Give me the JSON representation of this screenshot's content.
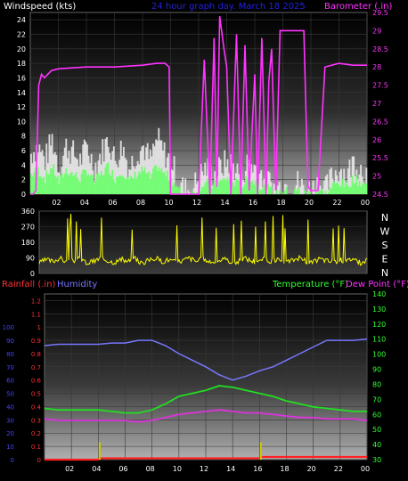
{
  "colors": {
    "windspeed_label": "#ffffff",
    "barometer": "#ff33ff",
    "header_title": "#2222dd",
    "wind_gust": "#e8e8e8",
    "wind_avg": "#66ff66",
    "wind_dir": "#ffff00",
    "rainfall": "#ff3333",
    "humidity": "#7777ff",
    "temperature": "#22dd22",
    "dewpoint": "#dd33dd",
    "rain_daily": "#cccc00",
    "left_axis_rain": "#4444ff",
    "right_axis_temp": "#33ff33"
  },
  "chart_data": [
    {
      "type": "line",
      "title": "24 hour graph day.  March 18 2025",
      "ylabel": "Windspeed (kts)",
      "ylabel2": "Barometer (.in)",
      "x_ticks": [
        "02",
        "04",
        "06",
        "08",
        "10",
        "12",
        "14",
        "16",
        "18",
        "20",
        "22",
        "00"
      ],
      "y_ticks": [
        "0",
        "2",
        "4",
        "6",
        "8",
        "10",
        "12",
        "14",
        "16",
        "18",
        "20",
        "22",
        "24"
      ],
      "y2_ticks": [
        "24.5",
        "25",
        "25.5",
        "26",
        "26.5",
        "27",
        "27.5",
        "28",
        "28.5",
        "29",
        "29.5"
      ],
      "ylim": [
        0,
        25
      ],
      "y2lim": [
        24.5,
        29.5
      ],
      "series": [
        {
          "name": "Windspeed (kts)",
          "x": [
            0,
            0.5,
            1,
            1.5,
            2,
            2.5,
            3,
            3.5,
            4,
            4.5,
            5,
            5.5,
            6,
            6.5,
            7,
            7.5,
            8,
            8.5,
            9,
            9.5,
            10,
            10.5,
            11,
            11.5,
            12,
            12.5,
            13,
            13.5,
            14,
            14.5,
            15,
            15.5,
            16,
            16.5,
            17,
            17.5,
            18,
            18.5,
            19,
            19.5,
            20,
            20.5,
            21,
            21.5,
            22,
            22.5,
            23,
            23.5,
            24
          ],
          "values": [
            5,
            6,
            4,
            7,
            3,
            6,
            5,
            4,
            6,
            3,
            5,
            7,
            4,
            6,
            3,
            5,
            6,
            4,
            7,
            5,
            4,
            1,
            0,
            0,
            2,
            3,
            2,
            3,
            4,
            3,
            2,
            4,
            3,
            2,
            1,
            0,
            1,
            0,
            1,
            0,
            0,
            1,
            0,
            2,
            3,
            2,
            4,
            3,
            2
          ]
        },
        {
          "name": "Barometer (.in)",
          "x": [
            0,
            0.2,
            0.4,
            0.6,
            0.8,
            1,
            1.5,
            2,
            4,
            6,
            8,
            9,
            9.6,
            9.9,
            10,
            10.1,
            12,
            12.4,
            12.8,
            13.1,
            13.3,
            13.5,
            13.8,
            14,
            14.3,
            14.7,
            15,
            15.3,
            15.6,
            16,
            16.2,
            16.5,
            16.8,
            17,
            17.2,
            17.5,
            17.8,
            18,
            18.5,
            19,
            19.5,
            19.7,
            19.8,
            20,
            20.5,
            21,
            22,
            23,
            24
          ],
          "values": [
            24.5,
            24.5,
            24.6,
            27.5,
            27.8,
            27.7,
            27.9,
            27.95,
            28.0,
            28.0,
            28.05,
            28.1,
            28.1,
            28.0,
            24.5,
            24.5,
            24.5,
            28.2,
            24.5,
            28.8,
            24.7,
            29.4,
            28.5,
            28.0,
            24.5,
            28.9,
            24.5,
            28.6,
            24.6,
            27.8,
            24.5,
            28.8,
            24.5,
            27.6,
            28.5,
            24.6,
            29.0,
            29.0,
            29.0,
            29.0,
            29.0,
            26.0,
            24.7,
            24.6,
            24.6,
            28.0,
            28.1,
            28.05,
            28.05
          ]
        }
      ]
    },
    {
      "type": "line",
      "title": "",
      "ylabel": "",
      "y_ticks": [
        "0",
        "90",
        "180",
        "270",
        "360"
      ],
      "y2_ticks": [
        "N",
        "W",
        "S",
        "E",
        "N"
      ],
      "ylim": [
        0,
        360
      ],
      "series": [
        {
          "name": "Wind direction",
          "x": [
            0,
            0.5,
            1,
            1.5,
            2,
            2.5,
            3,
            3.5,
            4,
            4.5,
            5,
            5.5,
            6,
            6.5,
            7,
            7.5,
            8,
            8.5,
            9,
            9.5,
            10,
            10.5,
            11,
            11.5,
            12,
            12.5,
            13,
            13.5,
            14,
            14.5,
            15,
            15.5,
            16,
            16.5,
            17,
            17.5,
            18,
            18.5,
            19,
            19.5,
            20,
            20.5,
            21,
            21.5,
            22,
            22.5,
            23,
            23.5,
            24
          ],
          "values": [
            60,
            80,
            70,
            90,
            65,
            75,
            85,
            60,
            70,
            90,
            75,
            65,
            80,
            70,
            85,
            60,
            75,
            90,
            70,
            80,
            65,
            75,
            90,
            70,
            85,
            60,
            75,
            80,
            70,
            65,
            90,
            75,
            60,
            85,
            70,
            80,
            65,
            75,
            90,
            70,
            60,
            85,
            75,
            65,
            80,
            70,
            90,
            60,
            75
          ]
        }
      ]
    },
    {
      "type": "line",
      "title": "",
      "ylabel": "Rainfall (.in)",
      "ylabel_humidity": "Humidity",
      "ylabel2": "Temperature (°F)",
      "ylabel2_dewpoint": "Dew Point (°F)",
      "x_ticks": [
        "02",
        "04",
        "06",
        "08",
        "10",
        "12",
        "14",
        "16",
        "18",
        "20",
        "22",
        "00"
      ],
      "y_ticks": [
        "0",
        "0.1",
        "0.2",
        "0.3",
        "0.4",
        "0.5",
        "0.6",
        "0.7",
        "0.8",
        "0.9",
        "1",
        "1.1",
        "1.2"
      ],
      "y_ticks_humidity": [
        "0",
        "10",
        "20",
        "30",
        "40",
        "50",
        "60",
        "70",
        "80",
        "90",
        "100"
      ],
      "y2_ticks": [
        "30",
        "40",
        "50",
        "60",
        "70",
        "80",
        "90",
        "100",
        "110",
        "120",
        "130",
        "140"
      ],
      "ylim": [
        0,
        1.25
      ],
      "y2lim": [
        30,
        140
      ],
      "series": [
        {
          "name": "Humidity",
          "x": [
            0,
            1,
            2,
            3,
            4,
            5,
            6,
            7,
            8,
            9,
            10,
            11,
            12,
            13,
            14,
            15,
            16,
            17,
            18,
            19,
            20,
            21,
            22,
            23,
            24
          ],
          "values": [
            86,
            87,
            87,
            87,
            87,
            88,
            88,
            90,
            90,
            86,
            80,
            75,
            70,
            64,
            60,
            63,
            67,
            70,
            75,
            80,
            85,
            90,
            90,
            90,
            91
          ]
        },
        {
          "name": "Temperature (°F)",
          "x": [
            0,
            1,
            2,
            3,
            4,
            5,
            6,
            7,
            8,
            9,
            10,
            11,
            12,
            13,
            14,
            15,
            16,
            17,
            18,
            19,
            20,
            21,
            22,
            23,
            24
          ],
          "values": [
            64,
            63,
            63,
            63,
            63,
            62,
            61,
            61,
            63,
            67,
            72,
            74,
            76,
            79,
            78,
            76,
            74,
            72,
            69,
            67,
            65,
            64,
            63,
            62,
            62
          ]
        },
        {
          "name": "Dew Point (°F)",
          "x": [
            0,
            1,
            2,
            3,
            4,
            5,
            6,
            7,
            8,
            9,
            10,
            11,
            12,
            13,
            14,
            15,
            16,
            17,
            18,
            19,
            20,
            21,
            22,
            23,
            24
          ],
          "values": [
            57,
            56,
            56,
            56,
            56,
            56,
            56,
            55,
            56,
            58,
            60,
            61,
            62,
            63,
            62,
            61,
            61,
            60,
            59,
            58,
            58,
            57,
            57,
            57,
            56
          ]
        },
        {
          "name": "Rainfall (.in)",
          "x": [
            0,
            4.0,
            4.1,
            8,
            12,
            16.0,
            16.1,
            20,
            24
          ],
          "values": [
            0.0,
            0.0,
            0.01,
            0.01,
            0.01,
            0.01,
            0.02,
            0.02,
            0.02
          ]
        },
        {
          "name": "Daily rain",
          "x": [
            4.1,
            16.1
          ],
          "values": [
            0.13,
            0.13
          ]
        }
      ]
    }
  ]
}
